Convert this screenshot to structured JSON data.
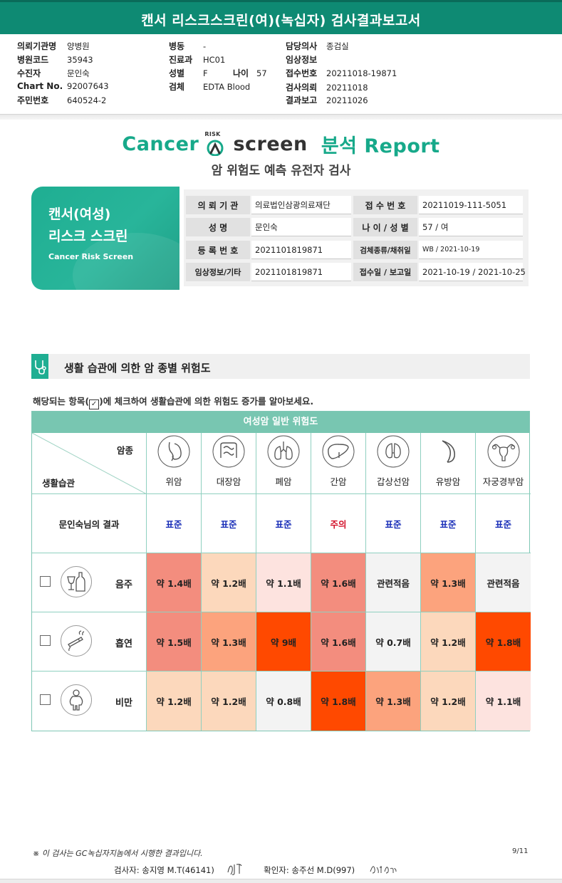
{
  "report": {
    "title": "캔서 리스크스크린(여)(녹십자) 검사결과보고서",
    "meta": [
      {
        "k": "의뢰기관명",
        "v": "양병원"
      },
      {
        "k": "병원코드",
        "v": "35943"
      },
      {
        "k": "수진자",
        "v": "문인숙"
      },
      {
        "k": "Chart No.",
        "v": "92007643"
      },
      {
        "k": "주민번호",
        "v": "640524-2"
      },
      {
        "k": "병동",
        "v": "-"
      },
      {
        "k": "진료과",
        "v": "HC01"
      },
      {
        "k": "성별",
        "v": "F"
      },
      {
        "k": "나이",
        "v": "57"
      },
      {
        "k": "검체",
        "v": "EDTA Blood"
      },
      {
        "k": "담당의사",
        "v": "종검실"
      },
      {
        "k": "임상정보",
        "v": ""
      },
      {
        "k": "접수번호",
        "v": "20211018-19871"
      },
      {
        "k": "검사의뢰",
        "v": "20211018"
      },
      {
        "k": "결과보고",
        "v": "20211026"
      }
    ]
  },
  "logo": {
    "cancer": "Cancer",
    "risk": "RISK",
    "screen": "screen",
    "report": "분석 Report"
  },
  "subtitle": "암 위험도 예측 유전자 검사",
  "card": {
    "line1": "캔서(여성)",
    "line2": "리스크 스크린",
    "line3": "Cancer Risk Screen"
  },
  "info": [
    {
      "label": "의 뢰 기 관",
      "value": "의료법인삼광의료재단"
    },
    {
      "label": "접 수 번 호",
      "value": "20211019-111-5051"
    },
    {
      "label": "성         명",
      "value": "문인숙"
    },
    {
      "label": "나 이 / 성 별",
      "value": "57 / 여"
    },
    {
      "label": "등 록 번 호",
      "value": "2021101819871"
    },
    {
      "label": "검체종류/채취일",
      "value": "WB / 2021-10-19"
    },
    {
      "label": "임상정보/기타",
      "value": "2021101819871"
    },
    {
      "label": "접수일 / 보고일",
      "value": "2021-10-19 / 2021-10-25"
    }
  ],
  "section": {
    "title": "생활 습관에 의한 암 종별 위험도",
    "note_before": "해당되는 항목(",
    "check": "✓",
    "note_after": ")에 체크하여 생활습관에 의한 위험도 증가를 알아보세요."
  },
  "grid": {
    "header": "여성암 일반 위험도",
    "corner_top": "암종",
    "corner_bottom": "생활습관",
    "cancers": [
      {
        "name": "위암",
        "icon": "stomach-icon"
      },
      {
        "name": "대장암",
        "icon": "colon-icon"
      },
      {
        "name": "폐암",
        "icon": "lung-icon"
      },
      {
        "name": "간암",
        "icon": "liver-icon"
      },
      {
        "name": "갑상선암",
        "icon": "thyroid-icon"
      },
      {
        "name": "유방암",
        "icon": "breast-icon"
      },
      {
        "name": "자궁경부암",
        "icon": "uterus-icon"
      }
    ],
    "result_label": "문인숙님의 결과",
    "results": [
      "표준",
      "표준",
      "표준",
      "주의",
      "표준",
      "표준",
      "표준"
    ],
    "habits": [
      {
        "label": "음주",
        "icon": "alcohol-icon",
        "cells": [
          "약 1.4배",
          "약 1.2배",
          "약 1.1배",
          "약 1.6배",
          "관련적음",
          "약 1.3배",
          "관련적음"
        ]
      },
      {
        "label": "흡연",
        "icon": "smoking-icon",
        "cells": [
          "약 1.5배",
          "약 1.3배",
          "약 9배",
          "약 1.6배",
          "약 0.7배",
          "약 1.2배",
          "약 1.8배"
        ]
      },
      {
        "label": "비만",
        "icon": "obesity-icon",
        "cells": [
          "약 1.2배",
          "약 1.2배",
          "약 0.8배",
          "약 1.8배",
          "약 1.3배",
          "약 1.2배",
          "약 1.1배"
        ]
      }
    ],
    "colors": {
      "header": "#78c6b1",
      "standard": "#1a2fb8",
      "caution": "#d3122a",
      "cells": [
        [
          "#f38d7e",
          "#fcd8bc",
          "#fde3df",
          "#f38d7e",
          "#f3f3f3",
          "#fca37d",
          "#f3f3f3"
        ],
        [
          "#f38d7e",
          "#fca37d",
          "#ff4900",
          "#f38d7e",
          "#f3f3f3",
          "#fcd8bc",
          "#ff4900"
        ],
        [
          "#fcd8bc",
          "#fcd8bc",
          "#f3f3f3",
          "#ff4900",
          "#fca37d",
          "#fcd8bc",
          "#fde3df"
        ]
      ]
    }
  },
  "footer": {
    "note": "※ 이 검사는 GC녹십자지놈에서 시행한 결과입니다.",
    "page": "9/11",
    "tester": "검사자: 송지영 M.T(46141)",
    "confirmer": "확인자: 송주선 M.D(997)"
  }
}
